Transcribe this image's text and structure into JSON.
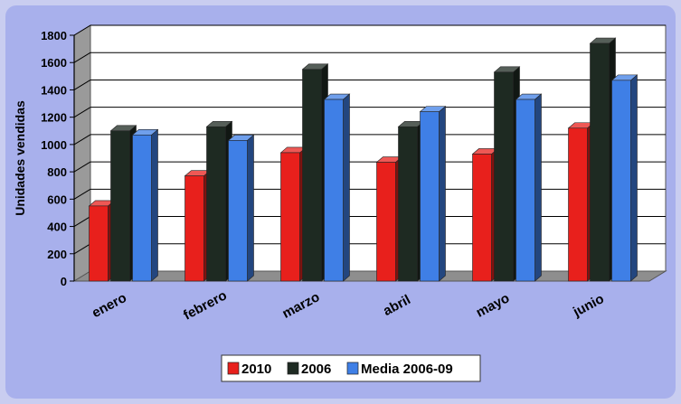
{
  "chart_data": {
    "type": "bar",
    "categories": [
      "enero",
      "febrero",
      "marzo",
      "abril",
      "mayo",
      "junio"
    ],
    "series": [
      {
        "name": "2010",
        "color": "#e8201c",
        "values": [
          550,
          770,
          940,
          870,
          930,
          1120
        ]
      },
      {
        "name": "2006",
        "color": "#1e2a22",
        "values": [
          1100,
          1130,
          1550,
          1130,
          1530,
          1740
        ]
      },
      {
        "name": "Media 2006-09",
        "color": "#3f7fe6",
        "values": [
          1070,
          1030,
          1330,
          1240,
          1330,
          1470
        ]
      }
    ],
    "ylabel": "Unidades vendidas",
    "ylim": [
      0,
      1800
    ],
    "yticks": [
      "0",
      "200",
      "400",
      "600",
      "800",
      "1000",
      "1200",
      "1400",
      "1600",
      "1800"
    ],
    "grid": true,
    "legend_position": "bottom"
  }
}
